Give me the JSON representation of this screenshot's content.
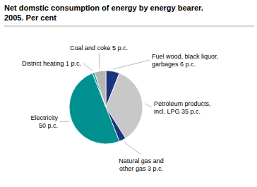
{
  "chart_data": {
    "type": "pie",
    "title": "Net domstic consumption of energy by energy bearer.",
    "subtitle": "2005. Per cent",
    "categories": [
      "Fuel wood, black liquor,\ngarbages 6 p.c.",
      "Petroleum products,\nincl. LPG 35 p.c.",
      "Natural gas and\nother gas 3 p.c.",
      "Electricity\n50 p.c.",
      "District heating 1 p.c.",
      "Coal and coke 5 p.c."
    ],
    "values": [
      6,
      35,
      3,
      50,
      1,
      5
    ],
    "colors": [
      "#1a3480",
      "#c8c8c8",
      "#1a3480",
      "#009090",
      "#25a0a0",
      "#b5b5b5"
    ]
  }
}
